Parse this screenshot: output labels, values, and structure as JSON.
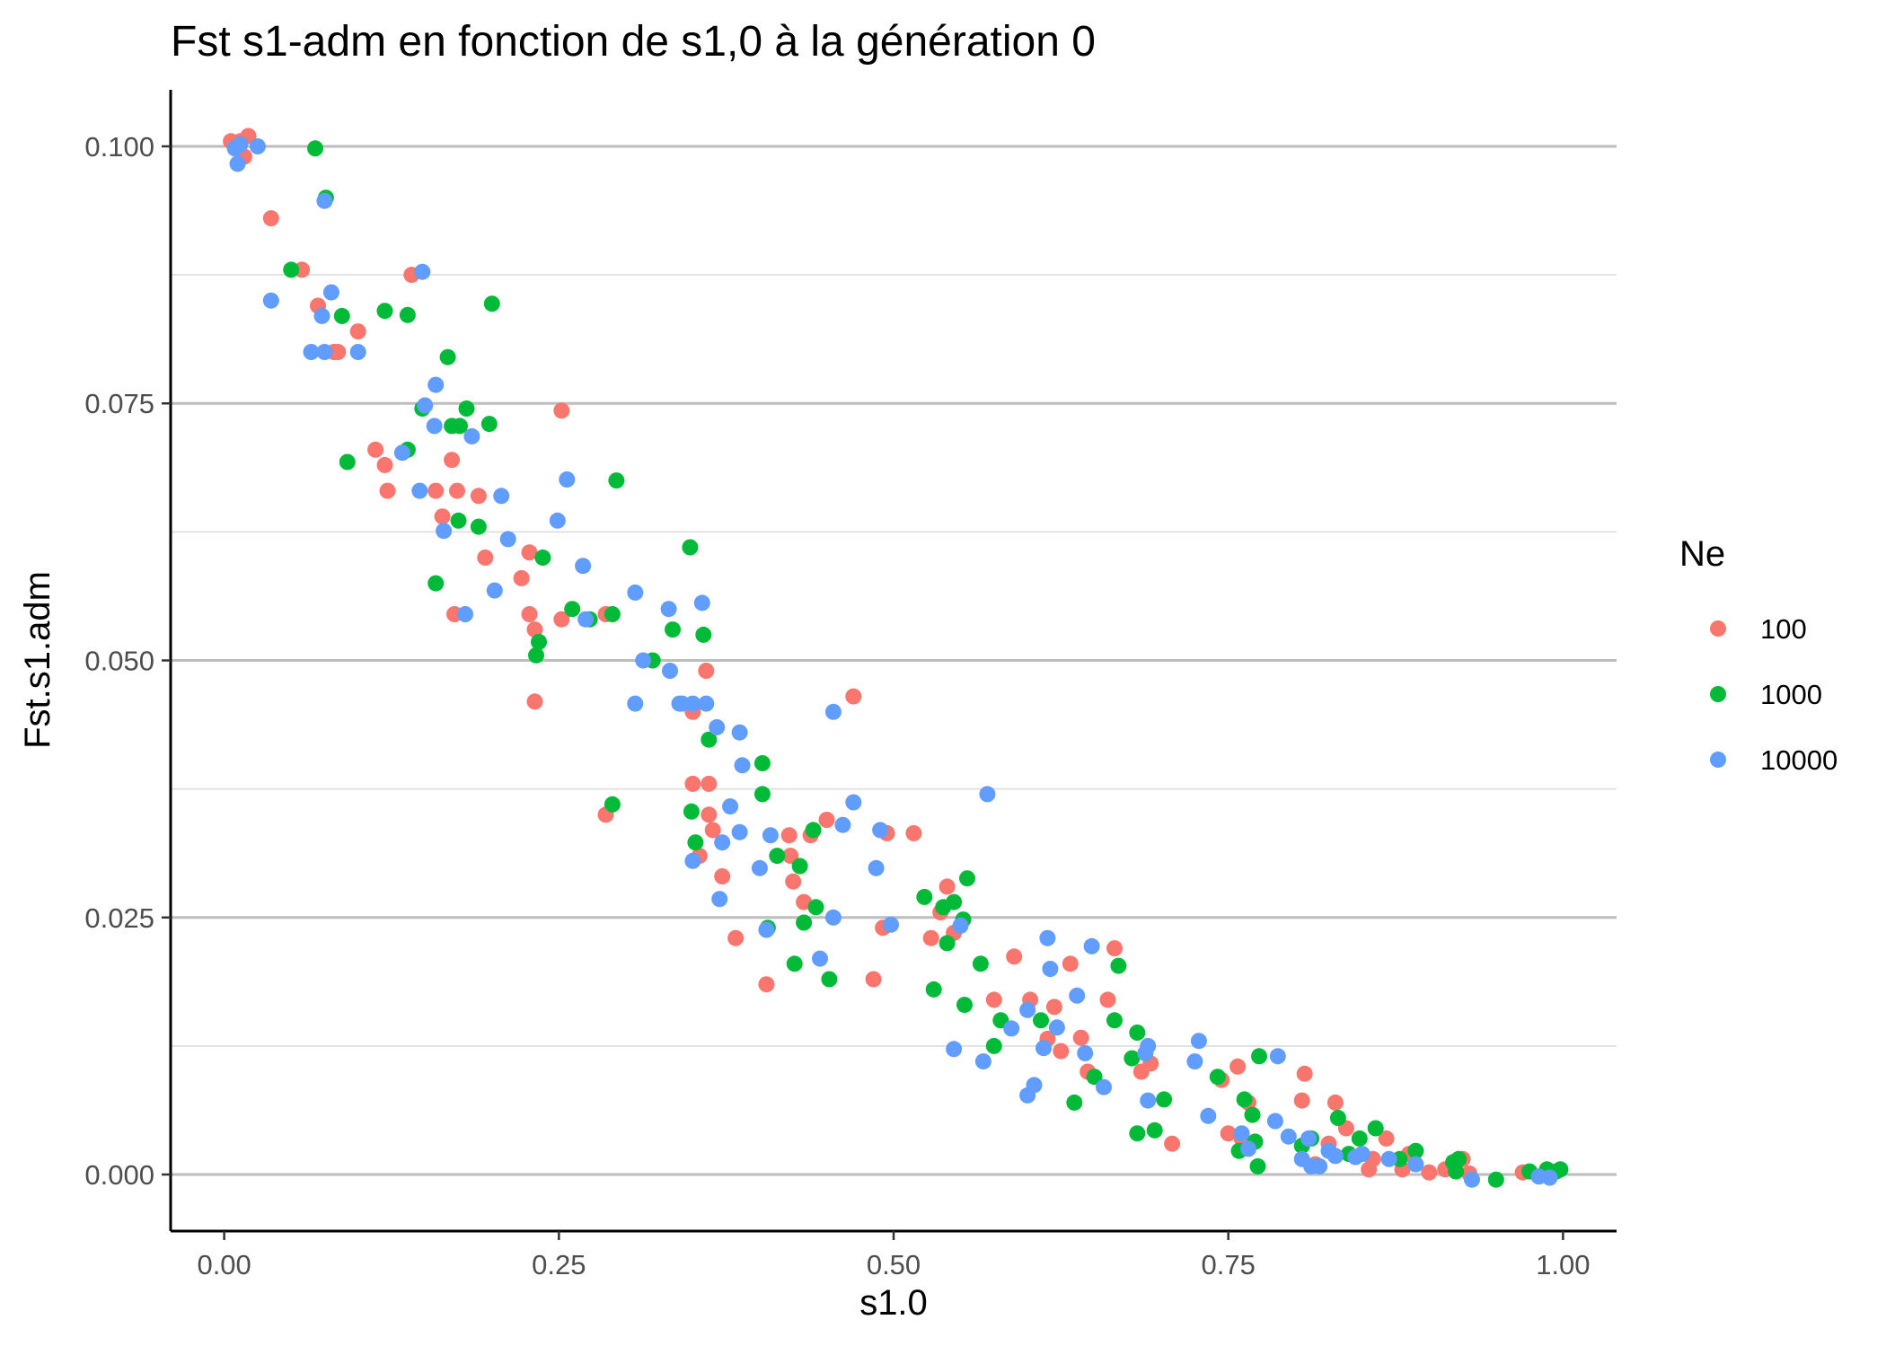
{
  "chart_data": {
    "type": "scatter",
    "title": "Fst s1-adm en fonction de s1,0 à la génération 0",
    "xlabel": "s1.0",
    "ylabel": "Fst.s1.adm",
    "xlim": [
      -0.04,
      1.04
    ],
    "ylim": [
      -0.0055,
      0.1055
    ],
    "x_ticks": [
      0.0,
      0.25,
      0.5,
      0.75,
      1.0
    ],
    "x_tick_labels": [
      "0.00",
      "0.25",
      "0.50",
      "0.75",
      "1.00"
    ],
    "y_ticks": [
      0.0,
      0.025,
      0.05,
      0.075,
      0.1
    ],
    "y_tick_labels": [
      "0.000",
      "0.025",
      "0.050",
      "0.075",
      "0.100"
    ],
    "grid": "horizontal major and minor",
    "legend": {
      "title": "Ne",
      "placement": "right"
    },
    "series": [
      {
        "name": "100",
        "color": "#F8766D",
        "points": [
          [
            0.005,
            0.1005
          ],
          [
            0.012,
            0.1005
          ],
          [
            0.018,
            0.101
          ],
          [
            0.015,
            0.099
          ],
          [
            0.035,
            0.093
          ],
          [
            0.058,
            0.088
          ],
          [
            0.07,
            0.0845
          ],
          [
            0.082,
            0.08
          ],
          [
            0.085,
            0.08
          ],
          [
            0.1,
            0.082
          ],
          [
            0.14,
            0.0875
          ],
          [
            0.113,
            0.0705
          ],
          [
            0.12,
            0.069
          ],
          [
            0.122,
            0.0665
          ],
          [
            0.158,
            0.0665
          ],
          [
            0.163,
            0.064
          ],
          [
            0.17,
            0.0695
          ],
          [
            0.174,
            0.0665
          ],
          [
            0.19,
            0.066
          ],
          [
            0.195,
            0.06
          ],
          [
            0.172,
            0.0545
          ],
          [
            0.222,
            0.058
          ],
          [
            0.228,
            0.0605
          ],
          [
            0.228,
            0.0545
          ],
          [
            0.232,
            0.053
          ],
          [
            0.232,
            0.046
          ],
          [
            0.252,
            0.0743
          ],
          [
            0.252,
            0.054
          ],
          [
            0.285,
            0.0545
          ],
          [
            0.285,
            0.035
          ],
          [
            0.35,
            0.045
          ],
          [
            0.35,
            0.038
          ],
          [
            0.355,
            0.031
          ],
          [
            0.36,
            0.049
          ],
          [
            0.362,
            0.038
          ],
          [
            0.362,
            0.035
          ],
          [
            0.365,
            0.0335
          ],
          [
            0.372,
            0.029
          ],
          [
            0.382,
            0.023
          ],
          [
            0.405,
            0.0185
          ],
          [
            0.422,
            0.033
          ],
          [
            0.423,
            0.031
          ],
          [
            0.425,
            0.0285
          ],
          [
            0.433,
            0.0265
          ],
          [
            0.438,
            0.033
          ],
          [
            0.45,
            0.0345
          ],
          [
            0.47,
            0.0465
          ],
          [
            0.485,
            0.019
          ],
          [
            0.492,
            0.024
          ],
          [
            0.495,
            0.0332
          ],
          [
            0.515,
            0.0332
          ],
          [
            0.528,
            0.023
          ],
          [
            0.535,
            0.0255
          ],
          [
            0.54,
            0.028
          ],
          [
            0.545,
            0.0235
          ],
          [
            0.575,
            0.017
          ],
          [
            0.59,
            0.0212
          ],
          [
            0.602,
            0.017
          ],
          [
            0.615,
            0.0132
          ],
          [
            0.62,
            0.0163
          ],
          [
            0.625,
            0.012
          ],
          [
            0.632,
            0.0205
          ],
          [
            0.64,
            0.0133
          ],
          [
            0.645,
            0.01
          ],
          [
            0.66,
            0.017
          ],
          [
            0.665,
            0.022
          ],
          [
            0.685,
            0.01
          ],
          [
            0.692,
            0.0108
          ],
          [
            0.708,
            0.003
          ],
          [
            0.745,
            0.0092
          ],
          [
            0.75,
            0.004
          ],
          [
            0.757,
            0.0105
          ],
          [
            0.76,
            0.0035
          ],
          [
            0.765,
            0.007
          ],
          [
            0.805,
            0.0072
          ],
          [
            0.807,
            0.0098
          ],
          [
            0.815,
            0.001
          ],
          [
            0.825,
            0.003
          ],
          [
            0.83,
            0.007
          ],
          [
            0.838,
            0.0045
          ],
          [
            0.855,
            0.0005
          ],
          [
            0.858,
            0.0015
          ],
          [
            0.868,
            0.0035
          ],
          [
            0.88,
            0.0005
          ],
          [
            0.885,
            0.002
          ],
          [
            0.9,
            0.0002
          ],
          [
            0.912,
            0.0005
          ],
          [
            0.925,
            0.0015
          ],
          [
            0.93,
            0.0001
          ],
          [
            0.97,
            0.0002
          ]
        ]
      },
      {
        "name": "1000",
        "color": "#00BA38",
        "points": [
          [
            0.068,
            0.0998
          ],
          [
            0.076,
            0.095
          ],
          [
            0.05,
            0.088
          ],
          [
            0.088,
            0.0835
          ],
          [
            0.12,
            0.084
          ],
          [
            0.137,
            0.0836
          ],
          [
            0.167,
            0.0795
          ],
          [
            0.2,
            0.0847
          ],
          [
            0.092,
            0.0693
          ],
          [
            0.137,
            0.0705
          ],
          [
            0.148,
            0.0745
          ],
          [
            0.17,
            0.0728
          ],
          [
            0.176,
            0.0728
          ],
          [
            0.181,
            0.0745
          ],
          [
            0.198,
            0.073
          ],
          [
            0.175,
            0.0636
          ],
          [
            0.19,
            0.063
          ],
          [
            0.158,
            0.0575
          ],
          [
            0.238,
            0.06
          ],
          [
            0.233,
            0.0505
          ],
          [
            0.235,
            0.0518
          ],
          [
            0.26,
            0.055
          ],
          [
            0.273,
            0.054
          ],
          [
            0.29,
            0.0545
          ],
          [
            0.293,
            0.0675
          ],
          [
            0.29,
            0.036
          ],
          [
            0.32,
            0.05
          ],
          [
            0.335,
            0.053
          ],
          [
            0.348,
            0.061
          ],
          [
            0.358,
            0.0525
          ],
          [
            0.362,
            0.0423
          ],
          [
            0.349,
            0.0353
          ],
          [
            0.352,
            0.0323
          ],
          [
            0.402,
            0.04
          ],
          [
            0.402,
            0.037
          ],
          [
            0.406,
            0.024
          ],
          [
            0.413,
            0.031
          ],
          [
            0.44,
            0.0335
          ],
          [
            0.43,
            0.03
          ],
          [
            0.433,
            0.0245
          ],
          [
            0.442,
            0.026
          ],
          [
            0.426,
            0.0205
          ],
          [
            0.452,
            0.019
          ],
          [
            0.523,
            0.027
          ],
          [
            0.53,
            0.018
          ],
          [
            0.537,
            0.026
          ],
          [
            0.54,
            0.0225
          ],
          [
            0.545,
            0.0265
          ],
          [
            0.555,
            0.0288
          ],
          [
            0.552,
            0.0248
          ],
          [
            0.553,
            0.0165
          ],
          [
            0.565,
            0.0205
          ],
          [
            0.58,
            0.015
          ],
          [
            0.575,
            0.0125
          ],
          [
            0.61,
            0.015
          ],
          [
            0.635,
            0.007
          ],
          [
            0.65,
            0.0095
          ],
          [
            0.665,
            0.015
          ],
          [
            0.668,
            0.0203
          ],
          [
            0.678,
            0.0113
          ],
          [
            0.682,
            0.0138
          ],
          [
            0.682,
            0.004
          ],
          [
            0.695,
            0.0043
          ],
          [
            0.702,
            0.0073
          ],
          [
            0.742,
            0.0095
          ],
          [
            0.758,
            0.0023
          ],
          [
            0.762,
            0.0073
          ],
          [
            0.768,
            0.0058
          ],
          [
            0.77,
            0.0032
          ],
          [
            0.773,
            0.0115
          ],
          [
            0.772,
            0.0008
          ],
          [
            0.805,
            0.0028
          ],
          [
            0.812,
            0.0035
          ],
          [
            0.832,
            0.0055
          ],
          [
            0.84,
            0.002
          ],
          [
            0.848,
            0.0035
          ],
          [
            0.86,
            0.0045
          ],
          [
            0.878,
            0.0015
          ],
          [
            0.89,
            0.0023
          ],
          [
            0.918,
            0.0012
          ],
          [
            0.922,
            0.0015
          ],
          [
            0.92,
            0.0003
          ],
          [
            0.95,
            -0.0005
          ],
          [
            0.975,
            0.0003
          ],
          [
            0.988,
            0.0005
          ],
          [
            0.995,
            0.0003
          ],
          [
            0.998,
            0.0005
          ]
        ]
      },
      {
        "name": "10000",
        "color": "#619CFF",
        "points": [
          [
            0.008,
            0.0998
          ],
          [
            0.012,
            0.1002
          ],
          [
            0.01,
            0.0983
          ],
          [
            0.025,
            0.1
          ],
          [
            0.075,
            0.0947
          ],
          [
            0.035,
            0.085
          ],
          [
            0.08,
            0.0858
          ],
          [
            0.073,
            0.0835
          ],
          [
            0.065,
            0.08
          ],
          [
            0.075,
            0.08
          ],
          [
            0.1,
            0.08
          ],
          [
            0.148,
            0.0878
          ],
          [
            0.15,
            0.0748
          ],
          [
            0.158,
            0.0768
          ],
          [
            0.157,
            0.0728
          ],
          [
            0.185,
            0.0718
          ],
          [
            0.133,
            0.0702
          ],
          [
            0.146,
            0.0665
          ],
          [
            0.207,
            0.066
          ],
          [
            0.164,
            0.0626
          ],
          [
            0.212,
            0.0618
          ],
          [
            0.249,
            0.0636
          ],
          [
            0.256,
            0.0676
          ],
          [
            0.268,
            0.0592
          ],
          [
            0.202,
            0.0568
          ],
          [
            0.18,
            0.0545
          ],
          [
            0.27,
            0.054
          ],
          [
            0.307,
            0.0566
          ],
          [
            0.313,
            0.05
          ],
          [
            0.332,
            0.055
          ],
          [
            0.357,
            0.0556
          ],
          [
            0.333,
            0.049
          ],
          [
            0.34,
            0.0458
          ],
          [
            0.342,
            0.0458
          ],
          [
            0.35,
            0.0458
          ],
          [
            0.36,
            0.0458
          ],
          [
            0.307,
            0.0458
          ],
          [
            0.368,
            0.0435
          ],
          [
            0.385,
            0.043
          ],
          [
            0.387,
            0.0398
          ],
          [
            0.455,
            0.045
          ],
          [
            0.378,
            0.0358
          ],
          [
            0.385,
            0.0333
          ],
          [
            0.372,
            0.0323
          ],
          [
            0.35,
            0.0305
          ],
          [
            0.37,
            0.0268
          ],
          [
            0.4,
            0.0298
          ],
          [
            0.408,
            0.033
          ],
          [
            0.462,
            0.034
          ],
          [
            0.47,
            0.0362
          ],
          [
            0.49,
            0.0335
          ],
          [
            0.487,
            0.0298
          ],
          [
            0.455,
            0.025
          ],
          [
            0.405,
            0.0238
          ],
          [
            0.445,
            0.021
          ],
          [
            0.498,
            0.0243
          ],
          [
            0.55,
            0.0242
          ],
          [
            0.57,
            0.037
          ],
          [
            0.545,
            0.0122
          ],
          [
            0.567,
            0.011
          ],
          [
            0.588,
            0.0142
          ],
          [
            0.6,
            0.016
          ],
          [
            0.6,
            0.0077
          ],
          [
            0.605,
            0.0087
          ],
          [
            0.612,
            0.0123
          ],
          [
            0.615,
            0.023
          ],
          [
            0.617,
            0.02
          ],
          [
            0.622,
            0.0143
          ],
          [
            0.637,
            0.0174
          ],
          [
            0.643,
            0.0118
          ],
          [
            0.648,
            0.0222
          ],
          [
            0.657,
            0.0085
          ],
          [
            0.688,
            0.0118
          ],
          [
            0.69,
            0.0125
          ],
          [
            0.69,
            0.0072
          ],
          [
            0.725,
            0.011
          ],
          [
            0.728,
            0.013
          ],
          [
            0.735,
            0.0057
          ],
          [
            0.76,
            0.004
          ],
          [
            0.765,
            0.0025
          ],
          [
            0.785,
            0.0052
          ],
          [
            0.787,
            0.0115
          ],
          [
            0.795,
            0.0037
          ],
          [
            0.805,
            0.0015
          ],
          [
            0.81,
            0.0035
          ],
          [
            0.812,
            0.0008
          ],
          [
            0.818,
            0.0008
          ],
          [
            0.825,
            0.0023
          ],
          [
            0.83,
            0.0018
          ],
          [
            0.845,
            0.0017
          ],
          [
            0.85,
            0.002
          ],
          [
            0.87,
            0.0015
          ],
          [
            0.89,
            0.001
          ],
          [
            0.932,
            -0.0005
          ],
          [
            0.982,
            -0.0002
          ],
          [
            0.99,
            -0.0003
          ]
        ]
      }
    ]
  }
}
